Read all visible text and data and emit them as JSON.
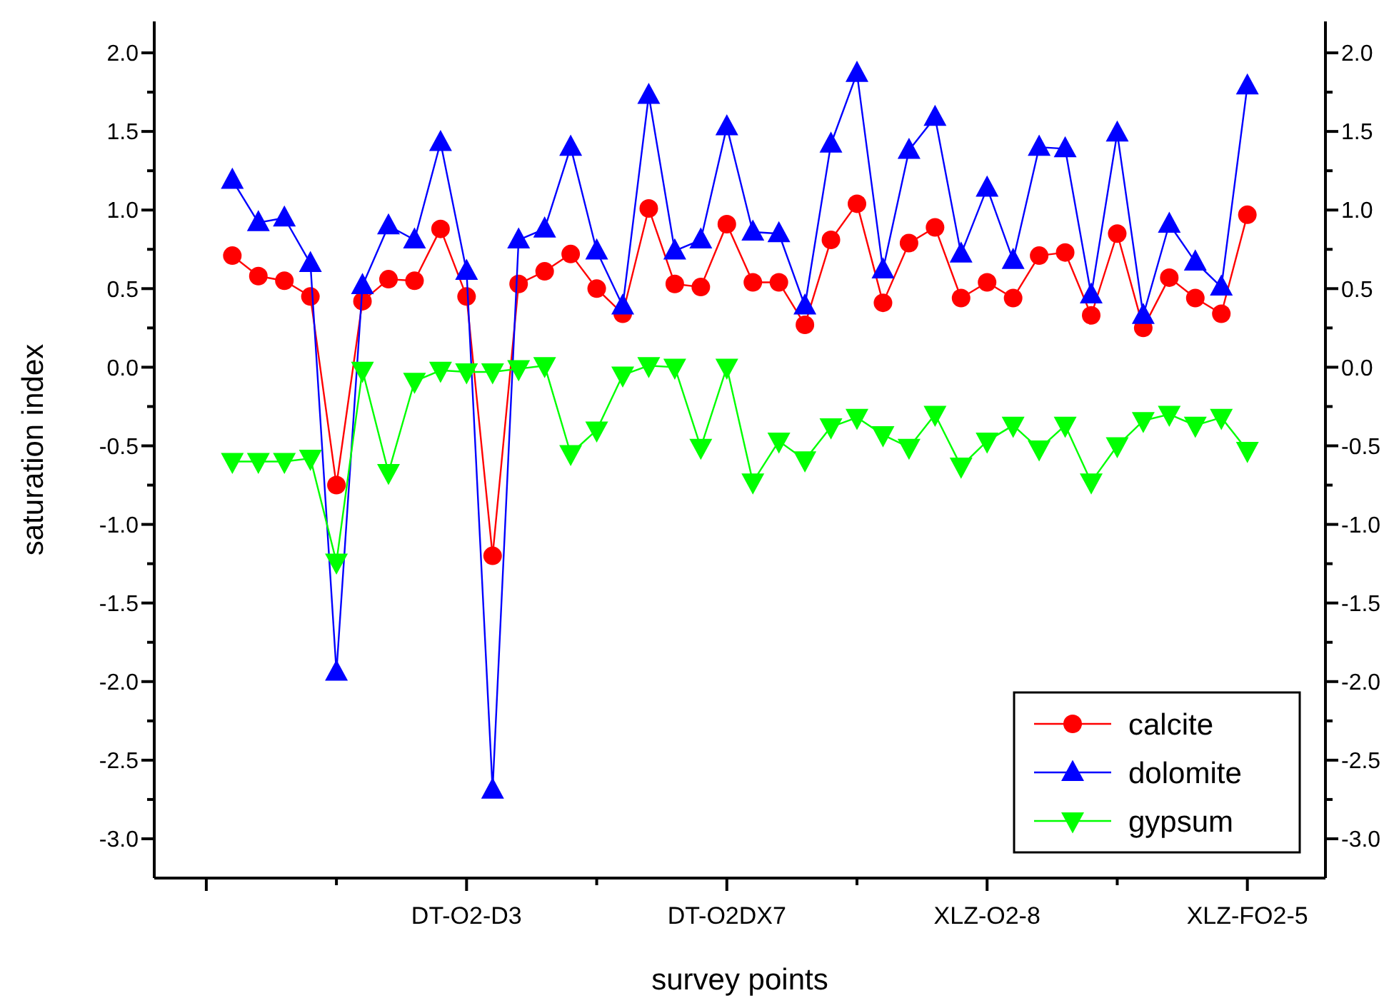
{
  "chart_data": {
    "type": "line",
    "xlabel": "survey points",
    "ylabel": "saturation index",
    "categories": [
      null,
      null,
      null,
      null,
      null,
      null,
      null,
      null,
      null,
      "DT-O2-D3",
      null,
      null,
      null,
      null,
      null,
      null,
      null,
      null,
      null,
      "DT-O2DX7",
      null,
      null,
      null,
      null,
      null,
      null,
      null,
      null,
      null,
      "XLZ-O2-8",
      null,
      null,
      null,
      null,
      null,
      null,
      null,
      null,
      null,
      "XLZ-FO2-5"
    ],
    "ylim": [
      -3.25,
      2.2
    ],
    "yticks": [
      {
        "value": -3,
        "label": "-3.0"
      },
      {
        "value": -2.5,
        "label": "-2.5"
      },
      {
        "value": -2,
        "label": "-2.0"
      },
      {
        "value": -1.5,
        "label": "-1.5"
      },
      {
        "value": -1,
        "label": "-1.0"
      },
      {
        "value": -0.5,
        "label": "-0.5"
      },
      {
        "value": 0,
        "label": "0.0"
      },
      {
        "value": 0.5,
        "label": "0.5"
      },
      {
        "value": 1,
        "label": "1.0"
      },
      {
        "value": 1.5,
        "label": "1.5"
      },
      {
        "value": 2,
        "label": "2.0"
      }
    ],
    "y2lim": [
      -3.25,
      2.2
    ],
    "y2ticks": [
      {
        "value": -3,
        "label": "-3.0"
      },
      {
        "value": -2.5,
        "label": "-2.5"
      },
      {
        "value": -2,
        "label": "-2.0"
      },
      {
        "value": -1.5,
        "label": "-1.5"
      },
      {
        "value": -1,
        "label": "-1.0"
      },
      {
        "value": -0.5,
        "label": "-0.5"
      },
      {
        "value": 0,
        "label": "0.0"
      },
      {
        "value": 0.5,
        "label": "0.5"
      },
      {
        "value": 1,
        "label": "1.0"
      },
      {
        "value": 1.5,
        "label": "1.5"
      },
      {
        "value": 2,
        "label": "2.0"
      }
    ],
    "grid": false,
    "legend": "bottom right",
    "line_style": "solid",
    "series": [
      {
        "name": "calcite",
        "color": "#ff0000",
        "marker": "circle",
        "values": [
          0.71,
          0.58,
          0.55,
          0.45,
          -0.75,
          0.42,
          0.56,
          0.55,
          0.88,
          0.45,
          -1.2,
          0.53,
          0.61,
          0.72,
          0.5,
          0.34,
          1.01,
          0.53,
          0.51,
          0.91,
          0.54,
          0.54,
          0.27,
          0.81,
          1.04,
          0.41,
          0.79,
          0.89,
          0.44,
          0.54,
          0.44,
          0.71,
          0.73,
          0.33,
          0.85,
          0.25,
          0.57,
          0.44,
          0.34,
          0.97
        ]
      },
      {
        "name": "dolomite",
        "color": "#0000ff",
        "marker": "triangle",
        "values": [
          1.19,
          0.92,
          0.95,
          0.66,
          -1.94,
          0.52,
          0.9,
          0.81,
          1.43,
          0.61,
          -2.69,
          0.81,
          0.88,
          1.4,
          0.74,
          0.39,
          1.73,
          0.74,
          0.81,
          1.53,
          0.86,
          0.85,
          0.39,
          1.42,
          1.87,
          0.62,
          1.38,
          1.59,
          0.72,
          1.14,
          0.68,
          1.4,
          1.39,
          0.46,
          1.49,
          0.33,
          0.91,
          0.67,
          0.51,
          1.79
        ]
      },
      {
        "name": "gypsum",
        "color": "#00ff00",
        "marker": "triangle-down",
        "values": [
          -0.6,
          -0.6,
          -0.6,
          -0.58,
          -1.24,
          -0.02,
          -0.67,
          -0.09,
          -0.02,
          -0.03,
          -0.03,
          -0.01,
          0.01,
          -0.55,
          -0.4,
          -0.05,
          0.01,
          0.0,
          -0.51,
          0.0,
          -0.73,
          -0.47,
          -0.59,
          -0.38,
          -0.32,
          -0.43,
          -0.51,
          -0.3,
          -0.63,
          -0.47,
          -0.37,
          -0.52,
          -0.37,
          -0.73,
          -0.5,
          -0.34,
          -0.3,
          -0.37,
          -0.32,
          -0.53
        ]
      }
    ]
  }
}
